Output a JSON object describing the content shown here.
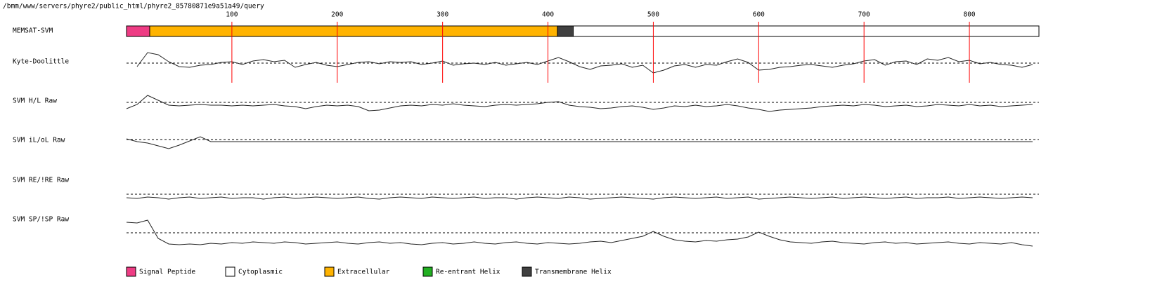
{
  "chart_data": {
    "type": "tracks",
    "title": "/bmm/www/servers/phyre2/public_html/phyre2_85780871e9a51a49/query",
    "xlim": [
      0,
      866
    ],
    "xticks": [
      100,
      200,
      300,
      400,
      500,
      600,
      700,
      800
    ],
    "tick_color": "#ff0000",
    "topology": {
      "name": "MEMSAT-SVM",
      "segments": [
        {
          "start": 0,
          "end": 22,
          "color": "#ee3c84"
        },
        {
          "start": 22,
          "end": 409,
          "color": "#ffb300"
        },
        {
          "start": 409,
          "end": 424,
          "color": "#404040"
        },
        {
          "start": 424,
          "end": 866,
          "color": "#ffffff"
        }
      ]
    },
    "legend": [
      {
        "name": "Signal Peptide",
        "color": "#ee3c84"
      },
      {
        "name": "Cytoplasmic",
        "color": "#ffffff"
      },
      {
        "name": "Extracellular",
        "color": "#ffb300"
      },
      {
        "name": "Re-entrant Helix",
        "color": "#22b022"
      },
      {
        "name": "Transmembrane Helix",
        "color": "#404040"
      }
    ],
    "x": [
      0,
      10,
      20,
      30,
      40,
      50,
      60,
      70,
      80,
      90,
      100,
      110,
      120,
      130,
      140,
      150,
      160,
      170,
      180,
      190,
      200,
      210,
      220,
      230,
      240,
      250,
      260,
      270,
      280,
      290,
      300,
      310,
      320,
      330,
      340,
      350,
      360,
      370,
      380,
      390,
      400,
      410,
      420,
      430,
      440,
      450,
      460,
      470,
      480,
      490,
      500,
      510,
      520,
      530,
      540,
      550,
      560,
      570,
      580,
      590,
      600,
      610,
      620,
      630,
      640,
      650,
      660,
      670,
      680,
      690,
      700,
      710,
      720,
      730,
      740,
      750,
      760,
      770,
      780,
      790,
      800,
      810,
      820,
      830,
      840,
      850,
      860
    ],
    "series": [
      {
        "name": "Kyte-Doolittle",
        "values": [
          null,
          -0.5,
          1.5,
          1.2,
          0.2,
          -0.5,
          -0.6,
          -0.3,
          -0.2,
          0.1,
          0.2,
          -0.2,
          0.3,
          0.5,
          0.2,
          0.4,
          -0.6,
          -0.2,
          0.1,
          -0.3,
          -0.5,
          -0.2,
          0.1,
          0.2,
          -0.1,
          0.2,
          0.1,
          0.2,
          -0.2,
          0.0,
          0.3,
          -0.3,
          -0.1,
          0.0,
          -0.2,
          0.1,
          -0.3,
          -0.1,
          0.1,
          -0.2,
          0.3,
          0.8,
          0.2,
          -0.5,
          -0.9,
          -0.4,
          -0.3,
          -0.1,
          -0.6,
          -0.3,
          -1.4,
          -1.0,
          -0.4,
          -0.2,
          -0.6,
          -0.2,
          -0.3,
          0.2,
          0.6,
          0.1,
          -1.0,
          -0.9,
          -0.6,
          -0.5,
          -0.3,
          -0.2,
          -0.4,
          -0.6,
          -0.3,
          -0.1,
          0.3,
          0.5,
          -0.3,
          0.2,
          0.3,
          -0.2,
          0.6,
          0.4,
          0.8,
          0.2,
          0.4,
          -0.1,
          0.1,
          -0.2,
          -0.3,
          -0.6,
          -0.2
        ]
      },
      {
        "name": "SVM H/L Raw",
        "values": [
          -0.9,
          -0.3,
          1.0,
          0.3,
          -0.4,
          -0.5,
          -0.4,
          -0.3,
          -0.4,
          -0.4,
          -0.5,
          -0.4,
          -0.5,
          -0.4,
          -0.3,
          -0.5,
          -0.6,
          -0.9,
          -0.6,
          -0.4,
          -0.5,
          -0.4,
          -0.6,
          -1.2,
          -1.1,
          -0.8,
          -0.5,
          -0.4,
          -0.5,
          -0.3,
          -0.4,
          -0.2,
          -0.4,
          -0.5,
          -0.6,
          -0.4,
          -0.3,
          -0.4,
          -0.3,
          -0.2,
          0.0,
          0.1,
          -0.4,
          -0.6,
          -0.7,
          -0.9,
          -0.8,
          -0.6,
          -0.5,
          -0.7,
          -1.0,
          -0.8,
          -0.5,
          -0.6,
          -0.4,
          -0.6,
          -0.5,
          -0.3,
          -0.5,
          -0.8,
          -1.0,
          -1.3,
          -1.1,
          -1.0,
          -0.9,
          -0.8,
          -0.6,
          -0.5,
          -0.4,
          -0.5,
          -0.3,
          -0.4,
          -0.6,
          -0.5,
          -0.4,
          -0.6,
          -0.5,
          -0.3,
          -0.4,
          -0.5,
          -0.3,
          -0.5,
          -0.4,
          -0.6,
          -0.5,
          -0.4,
          -0.3
        ]
      },
      {
        "name": "SVM iL/oL Raw",
        "values": [
          0.1,
          -0.3,
          -0.5,
          -0.9,
          -1.3,
          -0.8,
          -0.2,
          0.4,
          -0.3,
          -0.3,
          -0.3,
          -0.3,
          -0.3,
          -0.3,
          -0.3,
          -0.3,
          -0.3,
          -0.3,
          -0.3,
          -0.3,
          -0.3,
          -0.3,
          -0.3,
          -0.3,
          -0.3,
          -0.3,
          -0.3,
          -0.3,
          -0.3,
          -0.3,
          -0.3,
          -0.3,
          -0.3,
          -0.3,
          -0.3,
          -0.3,
          -0.3,
          -0.3,
          -0.3,
          -0.3,
          -0.3,
          -0.3,
          -0.3,
          -0.3,
          -0.3,
          -0.3,
          -0.3,
          -0.3,
          -0.3,
          -0.3,
          -0.3,
          -0.3,
          -0.3,
          -0.3,
          -0.3,
          -0.3,
          -0.3,
          -0.3,
          -0.3,
          -0.3,
          -0.3,
          -0.3,
          -0.3,
          -0.3,
          -0.3,
          -0.3,
          -0.3,
          -0.3,
          -0.3,
          -0.3,
          -0.3,
          -0.3,
          -0.3,
          -0.3,
          -0.3,
          -0.3,
          -0.3,
          -0.3,
          -0.3,
          -0.3,
          -0.3,
          -0.3,
          -0.3,
          -0.3,
          -0.3,
          -0.3,
          -0.3
        ]
      },
      {
        "name": "SVM RE/!RE Raw",
        "values": [
          -0.5,
          -0.6,
          -0.4,
          -0.5,
          -0.7,
          -0.5,
          -0.4,
          -0.6,
          -0.5,
          -0.4,
          -0.6,
          -0.5,
          -0.5,
          -0.7,
          -0.5,
          -0.4,
          -0.6,
          -0.5,
          -0.4,
          -0.5,
          -0.6,
          -0.5,
          -0.4,
          -0.6,
          -0.7,
          -0.5,
          -0.4,
          -0.5,
          -0.6,
          -0.4,
          -0.5,
          -0.6,
          -0.5,
          -0.4,
          -0.6,
          -0.5,
          -0.5,
          -0.7,
          -0.5,
          -0.4,
          -0.5,
          -0.6,
          -0.4,
          -0.5,
          -0.7,
          -0.6,
          -0.5,
          -0.4,
          -0.5,
          -0.6,
          -0.7,
          -0.5,
          -0.4,
          -0.5,
          -0.6,
          -0.5,
          -0.4,
          -0.6,
          -0.5,
          -0.4,
          -0.7,
          -0.6,
          -0.5,
          -0.4,
          -0.5,
          -0.6,
          -0.5,
          -0.4,
          -0.6,
          -0.5,
          -0.4,
          -0.5,
          -0.6,
          -0.5,
          -0.4,
          -0.6,
          -0.5,
          -0.5,
          -0.4,
          -0.6,
          -0.5,
          -0.4,
          -0.5,
          -0.6,
          -0.5,
          -0.4,
          -0.5
        ]
      },
      {
        "name": "SVM SP/!SP Raw",
        "values": [
          1.5,
          1.4,
          1.8,
          -0.8,
          -1.6,
          -1.7,
          -1.6,
          -1.7,
          -1.5,
          -1.6,
          -1.4,
          -1.5,
          -1.3,
          -1.4,
          -1.5,
          -1.3,
          -1.4,
          -1.6,
          -1.5,
          -1.4,
          -1.3,
          -1.5,
          -1.6,
          -1.4,
          -1.3,
          -1.5,
          -1.4,
          -1.6,
          -1.7,
          -1.5,
          -1.4,
          -1.6,
          -1.5,
          -1.3,
          -1.5,
          -1.6,
          -1.4,
          -1.3,
          -1.5,
          -1.6,
          -1.4,
          -1.5,
          -1.6,
          -1.5,
          -1.3,
          -1.2,
          -1.4,
          -1.1,
          -0.8,
          -0.5,
          0.2,
          -0.5,
          -1.0,
          -1.2,
          -1.3,
          -1.1,
          -1.2,
          -1.0,
          -0.9,
          -0.6,
          0.1,
          -0.5,
          -1.0,
          -1.3,
          -1.4,
          -1.5,
          -1.3,
          -1.2,
          -1.4,
          -1.5,
          -1.6,
          -1.4,
          -1.3,
          -1.5,
          -1.4,
          -1.6,
          -1.5,
          -1.4,
          -1.3,
          -1.5,
          -1.6,
          -1.4,
          -1.5,
          -1.6,
          -1.4,
          -1.7,
          -1.9
        ]
      }
    ]
  }
}
